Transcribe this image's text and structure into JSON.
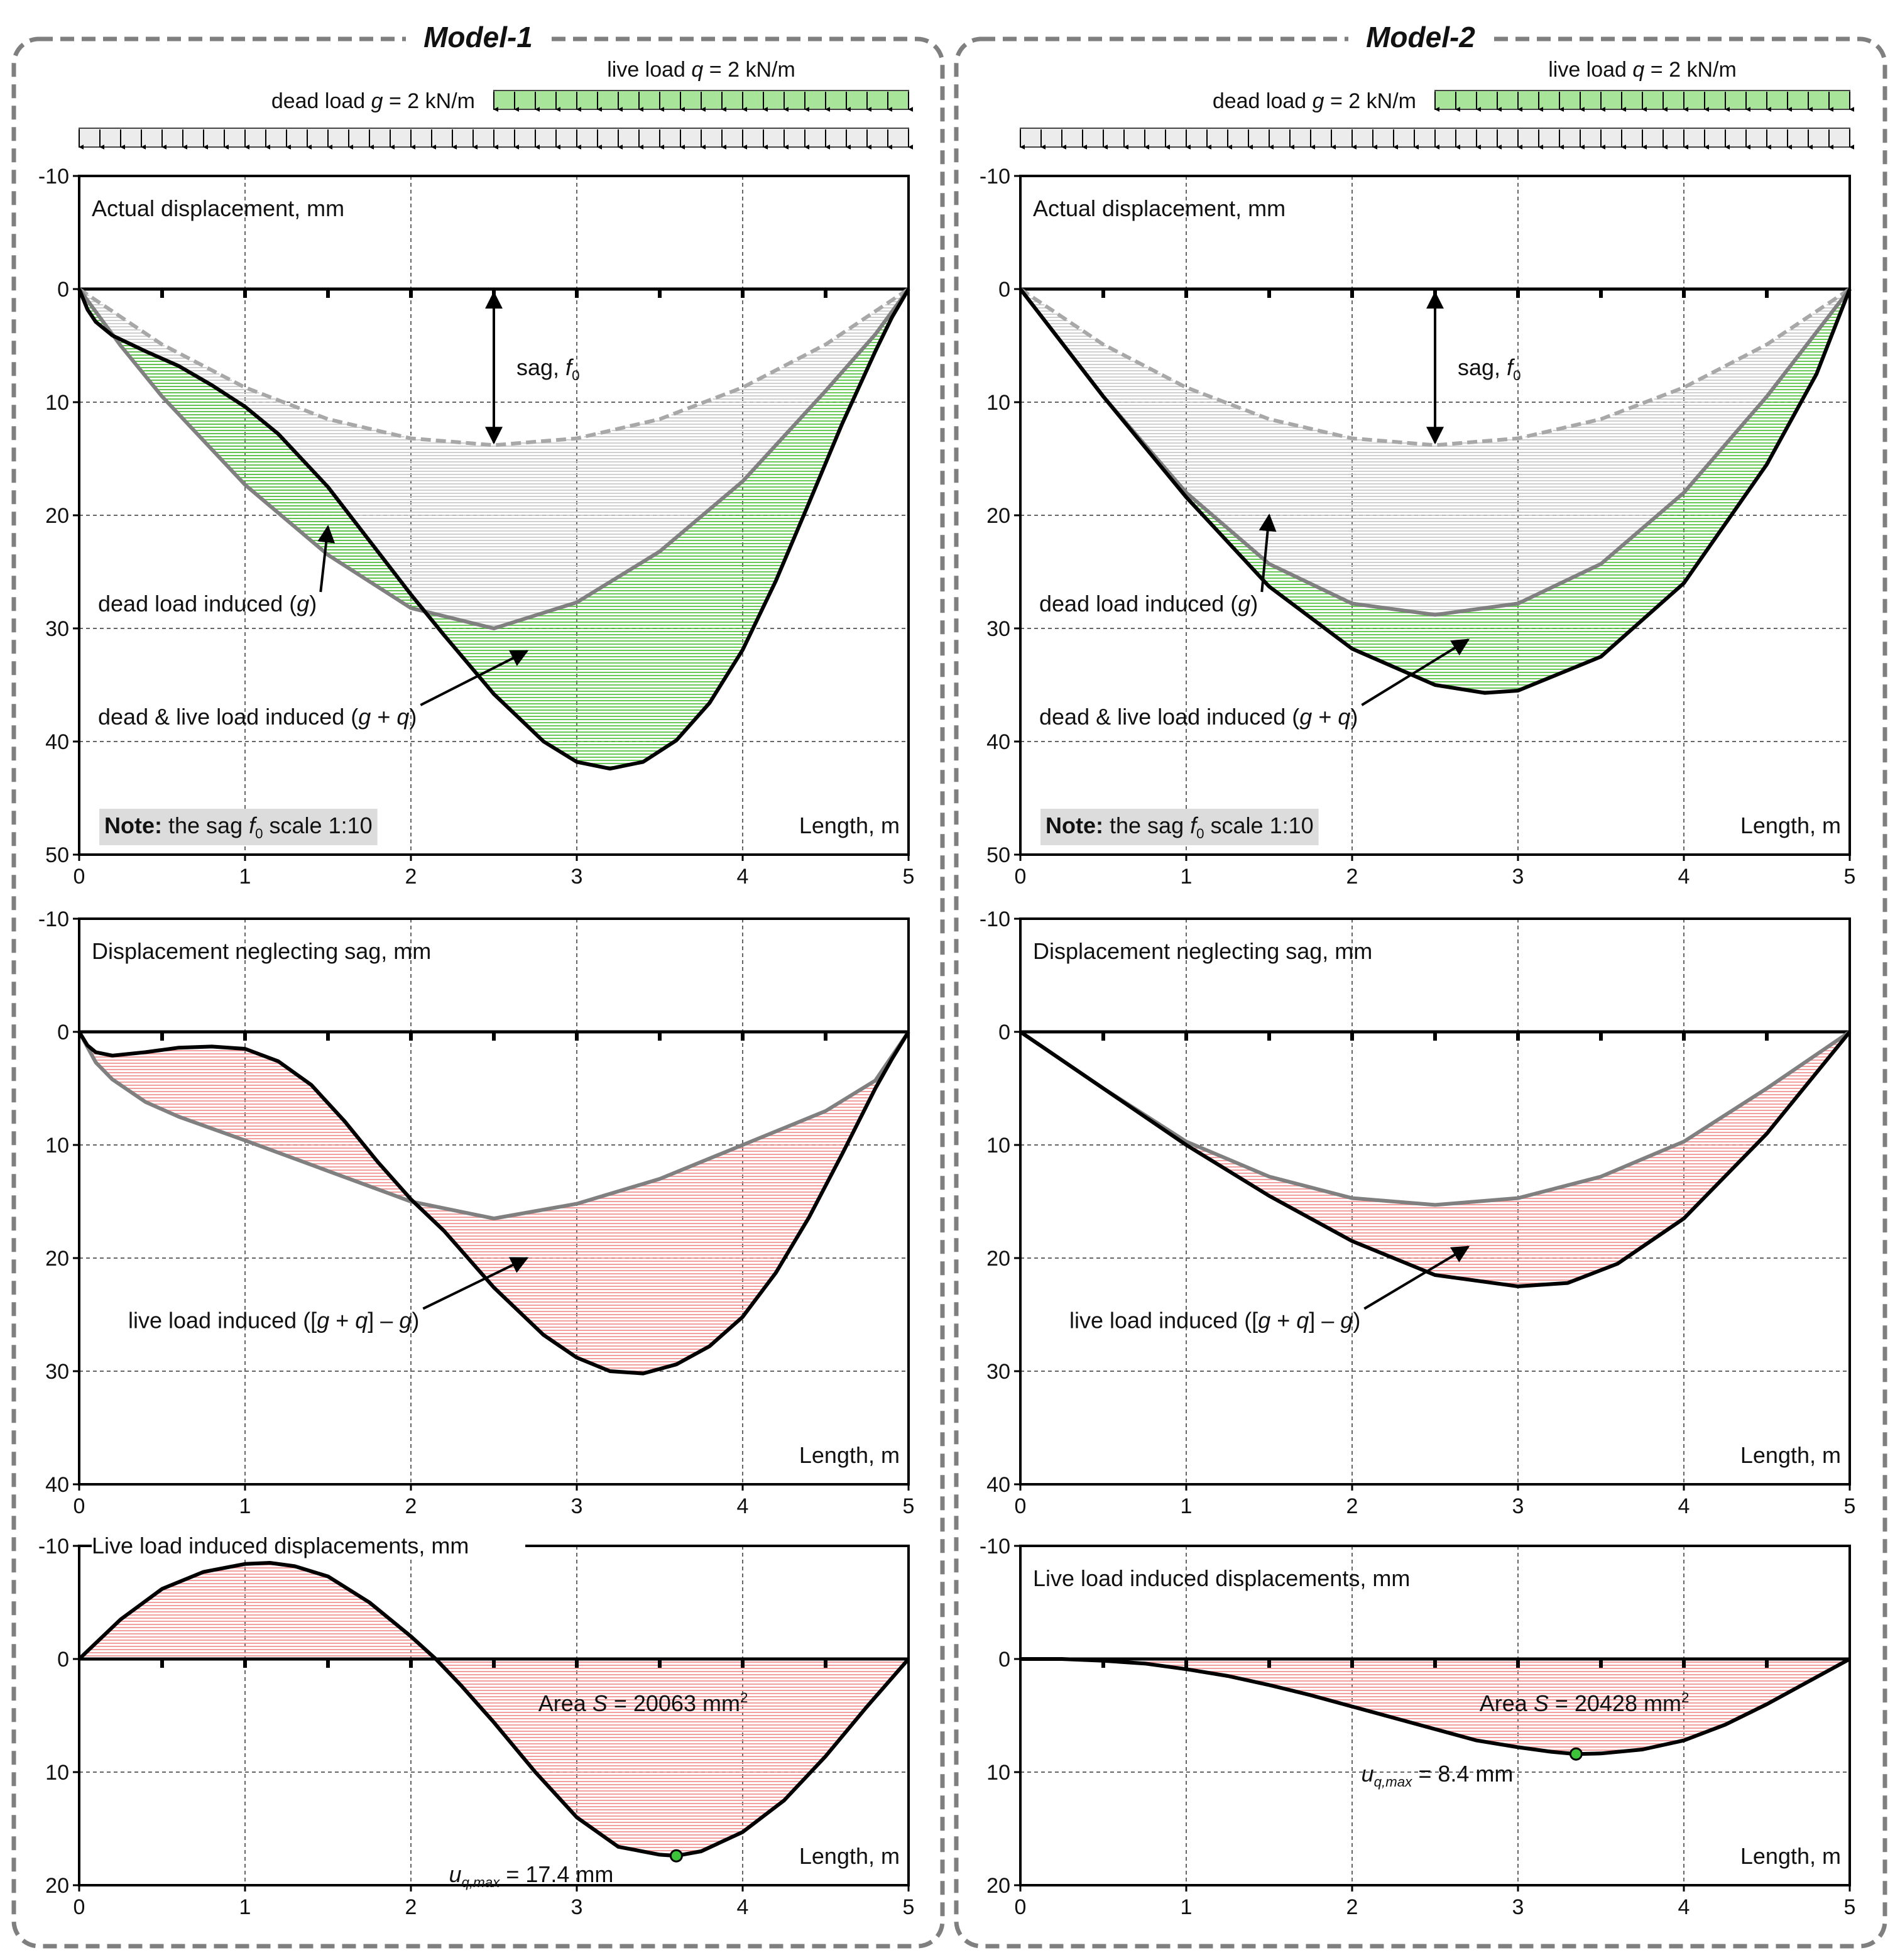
{
  "chart_data": [
    {
      "model": "Model-1",
      "loads": {
        "dead_label": [
          "dead load ",
          "g",
          " = 2 kN/m"
        ],
        "live_label": [
          "live load ",
          "q",
          " = 2 kN/m"
        ],
        "dead_extent": [
          0,
          5
        ],
        "live_extent": [
          2.5,
          5
        ]
      },
      "panels": [
        {
          "type": "area",
          "title": "Actual displacement, mm",
          "xlabel": "Length, m",
          "xlim": [
            0,
            5
          ],
          "ylim": [
            -10,
            50
          ],
          "yticks": [
            -10,
            0,
            10,
            20,
            30,
            40,
            50
          ],
          "xticks": [
            0,
            1,
            2,
            3,
            4,
            5
          ],
          "grid": true,
          "y_inverted": true,
          "series": [
            {
              "key": "sag",
              "style": "dashed-grey",
              "x": [
                0,
                0.5,
                1,
                1.5,
                2,
                2.5,
                3,
                3.5,
                4,
                4.5,
                5
              ],
              "y": [
                0,
                4.9,
                8.7,
                11.5,
                13.2,
                13.8,
                13.2,
                11.5,
                8.7,
                4.9,
                0
              ]
            },
            {
              "key": "g",
              "style": "grey",
              "x": [
                0,
                0.25,
                0.5,
                1,
                1.5,
                2,
                2.5,
                3,
                3.5,
                4,
                4.5,
                4.8,
                5
              ],
              "y": [
                0,
                5,
                9.5,
                17.3,
                23.5,
                28.2,
                30,
                27.7,
                23.2,
                17,
                9,
                4,
                0
              ]
            },
            {
              "key": "g+q",
              "style": "black",
              "x": [
                0,
                0.05,
                0.1,
                0.2,
                0.4,
                0.6,
                0.8,
                1,
                1.2,
                1.5,
                1.8,
                2,
                2.2,
                2.5,
                2.8,
                3,
                3.2,
                3.4,
                3.6,
                3.8,
                4,
                4.2,
                4.4,
                4.6,
                4.8,
                4.9,
                5
              ],
              "y": [
                0,
                1.8,
                2.9,
                4.1,
                5.5,
                6.8,
                8.5,
                10.4,
                12.8,
                17.5,
                23.2,
                27,
                30.6,
                35.8,
                40,
                41.8,
                42.4,
                41.8,
                39.9,
                36.6,
                31.9,
                25.8,
                18.9,
                11.9,
                5.5,
                2.5,
                0
              ]
            }
          ],
          "fills": [
            {
              "between": [
                "sag",
                "g"
              ],
              "color": "#c8c8c8"
            },
            {
              "between": [
                "g",
                "g+q"
              ],
              "color": "#4fc13b"
            }
          ],
          "sag_arrow": {
            "x": 2.5,
            "label": [
              "sag, ",
              "f",
              "0"
            ]
          },
          "annotations": [
            {
              "text": [
                "dead load induced (",
                "g",
                ")"
              ],
              "tip": [
                1.5,
                21
              ]
            },
            {
              "text": [
                "dead & live load induced (",
                "g",
                " + ",
                "q",
                ")"
              ],
              "tip": [
                2.7,
                32
              ]
            }
          ],
          "note": [
            "Note:",
            " the sag ",
            "f",
            "0",
            " scale 1:10"
          ]
        },
        {
          "type": "area",
          "title": "Displacement neglecting sag, mm",
          "xlabel": "Length, m",
          "xlim": [
            0,
            5
          ],
          "ylim": [
            -10,
            40
          ],
          "yticks": [
            -10,
            0,
            10,
            20,
            30,
            40
          ],
          "xticks": [
            0,
            1,
            2,
            3,
            4,
            5
          ],
          "grid": true,
          "y_inverted": true,
          "series": [
            {
              "key": "g",
              "style": "grey",
              "x": [
                0,
                0.1,
                0.2,
                0.4,
                0.6,
                1,
                1.5,
                2,
                2.5,
                3,
                3.5,
                4,
                4.5,
                4.8,
                5
              ],
              "y": [
                0,
                2.7,
                4.2,
                6.2,
                7.5,
                9.6,
                12.3,
                15,
                16.5,
                15.2,
                13,
                10,
                7,
                4.3,
                0
              ]
            },
            {
              "key": "g+q",
              "style": "black",
              "x": [
                0,
                0.05,
                0.1,
                0.2,
                0.4,
                0.6,
                0.8,
                1,
                1.2,
                1.4,
                1.6,
                1.8,
                2,
                2.2,
                2.5,
                2.8,
                3,
                3.2,
                3.4,
                3.6,
                3.8,
                4,
                4.2,
                4.4,
                4.6,
                4.8,
                4.9,
                5
              ],
              "y": [
                0,
                1.2,
                1.8,
                2.1,
                1.8,
                1.4,
                1.3,
                1.5,
                2.6,
                4.7,
                7.9,
                11.5,
                14.8,
                17.6,
                22.6,
                26.8,
                28.8,
                30,
                30.2,
                29.4,
                27.8,
                25.2,
                21.3,
                16.4,
                10.8,
                5,
                2.4,
                0
              ]
            }
          ],
          "fills": [
            {
              "between": [
                "g",
                "g+q"
              ],
              "color": "#f28f8f"
            }
          ],
          "annotations": [
            {
              "text": [
                "live load induced ([",
                "g",
                " + ",
                "q",
                "] – ",
                "g",
                ")"
              ],
              "tip": [
                2.7,
                20
              ]
            }
          ]
        },
        {
          "type": "area",
          "title": "Live load induced displacements, mm",
          "xlabel": "Length, m",
          "xlim": [
            0,
            5
          ],
          "ylim": [
            -10,
            20
          ],
          "yticks": [
            -10,
            0,
            10,
            20
          ],
          "xticks": [
            0,
            1,
            2,
            3,
            4,
            5
          ],
          "grid": true,
          "y_inverted": true,
          "series": [
            {
              "key": "q",
              "style": "black",
              "x": [
                0,
                0.25,
                0.5,
                0.75,
                1,
                1.15,
                1.3,
                1.5,
                1.75,
                2,
                2.15,
                2.3,
                2.5,
                2.75,
                3,
                3.25,
                3.5,
                3.6,
                3.75,
                4,
                4.25,
                4.5,
                4.75,
                5
              ],
              "y": [
                0,
                -3.5,
                -6.2,
                -7.7,
                -8.4,
                -8.5,
                -8.2,
                -7.3,
                -5,
                -2,
                0,
                2.3,
                5.6,
                10,
                14,
                16.6,
                17.3,
                17.4,
                17,
                15.3,
                12.5,
                8.6,
                4.2,
                0
              ]
            }
          ],
          "fills": [
            {
              "between": [
                "zero",
                "q"
              ],
              "color": "#f28f8f"
            }
          ],
          "area_label": [
            "Area ",
            "S",
            " = 20063 mm",
            "2"
          ],
          "umax": {
            "x": 3.6,
            "y": 17.4,
            "label": [
              "u",
              "q,max",
              " = 17.4 mm"
            ]
          }
        }
      ]
    },
    {
      "model": "Model-2",
      "loads": {
        "dead_label": [
          "dead load ",
          "g",
          " = 2 kN/m"
        ],
        "live_label": [
          "live load ",
          "q",
          " = 2 kN/m"
        ],
        "dead_extent": [
          0,
          5
        ],
        "live_extent": [
          2.5,
          5
        ]
      },
      "panels": [
        {
          "type": "area",
          "title": "Actual displacement, mm",
          "xlabel": "Length, m",
          "xlim": [
            0,
            5
          ],
          "ylim": [
            -10,
            50
          ],
          "yticks": [
            -10,
            0,
            10,
            20,
            30,
            40,
            50
          ],
          "xticks": [
            0,
            1,
            2,
            3,
            4,
            5
          ],
          "grid": true,
          "y_inverted": true,
          "series": [
            {
              "key": "sag",
              "style": "dashed-grey",
              "x": [
                0,
                0.5,
                1,
                1.5,
                2,
                2.5,
                3,
                3.5,
                4,
                4.5,
                5
              ],
              "y": [
                0,
                4.9,
                8.7,
                11.5,
                13.2,
                13.8,
                13.2,
                11.5,
                8.7,
                4.9,
                0
              ]
            },
            {
              "key": "g",
              "style": "grey",
              "x": [
                0,
                0.5,
                1,
                1.5,
                2,
                2.5,
                3,
                3.5,
                4,
                4.5,
                5
              ],
              "y": [
                0,
                9.5,
                18,
                24.3,
                27.8,
                28.8,
                27.8,
                24.3,
                18,
                9.5,
                0
              ]
            },
            {
              "key": "g+q",
              "style": "black",
              "x": [
                0,
                0.5,
                1,
                1.5,
                2,
                2.5,
                2.8,
                3,
                3.5,
                4,
                4.5,
                4.8,
                5
              ],
              "y": [
                0,
                9.5,
                18.4,
                26.3,
                31.8,
                35,
                35.7,
                35.5,
                32.5,
                26,
                15.5,
                7.5,
                0
              ]
            }
          ],
          "fills": [
            {
              "between": [
                "sag",
                "g"
              ],
              "color": "#c8c8c8"
            },
            {
              "between": [
                "g",
                "g+q"
              ],
              "color": "#4fc13b"
            }
          ],
          "sag_arrow": {
            "x": 2.5,
            "label": [
              "sag, ",
              "f",
              "0"
            ]
          },
          "annotations": [
            {
              "text": [
                "dead load induced (",
                "g",
                ")"
              ],
              "tip": [
                1.5,
                20
              ]
            },
            {
              "text": [
                "dead & live load induced (",
                "g",
                " + ",
                "q",
                ")"
              ],
              "tip": [
                2.7,
                31
              ]
            }
          ],
          "note": [
            "Note:",
            " the sag ",
            "f",
            "0",
            " scale 1:10"
          ]
        },
        {
          "type": "area",
          "title": "Displacement neglecting sag, mm",
          "xlabel": "Length, m",
          "xlim": [
            0,
            5
          ],
          "ylim": [
            -10,
            40
          ],
          "yticks": [
            -10,
            0,
            10,
            20,
            30,
            40
          ],
          "xticks": [
            0,
            1,
            2,
            3,
            4,
            5
          ],
          "grid": true,
          "y_inverted": true,
          "series": [
            {
              "key": "g",
              "style": "grey",
              "x": [
                0,
                0.5,
                1,
                1.5,
                2,
                2.5,
                3,
                3.5,
                4,
                4.5,
                5
              ],
              "y": [
                0,
                5,
                9.7,
                12.8,
                14.7,
                15.3,
                14.7,
                12.8,
                9.7,
                5,
                0
              ]
            },
            {
              "key": "g+q",
              "style": "black",
              "x": [
                0,
                0.5,
                1,
                1.5,
                2,
                2.5,
                3,
                3.3,
                3.6,
                4,
                4.5,
                5
              ],
              "y": [
                0,
                5,
                10,
                14.5,
                18.5,
                21.5,
                22.5,
                22.2,
                20.5,
                16.5,
                9,
                0
              ]
            }
          ],
          "fills": [
            {
              "between": [
                "g",
                "g+q"
              ],
              "color": "#f28f8f"
            }
          ],
          "annotations": [
            {
              "text": [
                "live load induced ([",
                "g",
                " + ",
                "q",
                "] – ",
                "g",
                ")"
              ],
              "tip": [
                2.7,
                19
              ]
            }
          ]
        },
        {
          "type": "area",
          "title": "Live load induced displacements, mm",
          "xlabel": "Length, m",
          "xlim": [
            0,
            5
          ],
          "ylim": [
            -10,
            20
          ],
          "yticks": [
            -10,
            0,
            10,
            20
          ],
          "xticks": [
            0,
            1,
            2,
            3,
            4,
            5
          ],
          "grid": true,
          "y_inverted": true,
          "series": [
            {
              "key": "q",
              "style": "black",
              "x": [
                0,
                0.25,
                0.5,
                0.75,
                1,
                1.25,
                1.5,
                1.75,
                2,
                2.25,
                2.5,
                2.75,
                3,
                3.2,
                3.35,
                3.5,
                3.75,
                4,
                4.25,
                4.5,
                4.75,
                5
              ],
              "y": [
                0,
                0,
                0.15,
                0.4,
                0.9,
                1.5,
                2.3,
                3.2,
                4.2,
                5.2,
                6.2,
                7.2,
                7.8,
                8.2,
                8.4,
                8.35,
                8,
                7.2,
                5.8,
                4,
                2,
                0
              ]
            }
          ],
          "fills": [
            {
              "between": [
                "zero",
                "q"
              ],
              "color": "#f28f8f"
            }
          ],
          "area_label": [
            "Area ",
            "S",
            " = 20428 mm",
            "2"
          ],
          "umax": {
            "x": 3.35,
            "y": 8.4,
            "label": [
              "u",
              "q,max",
              " = 8.4 mm"
            ]
          }
        }
      ]
    }
  ]
}
